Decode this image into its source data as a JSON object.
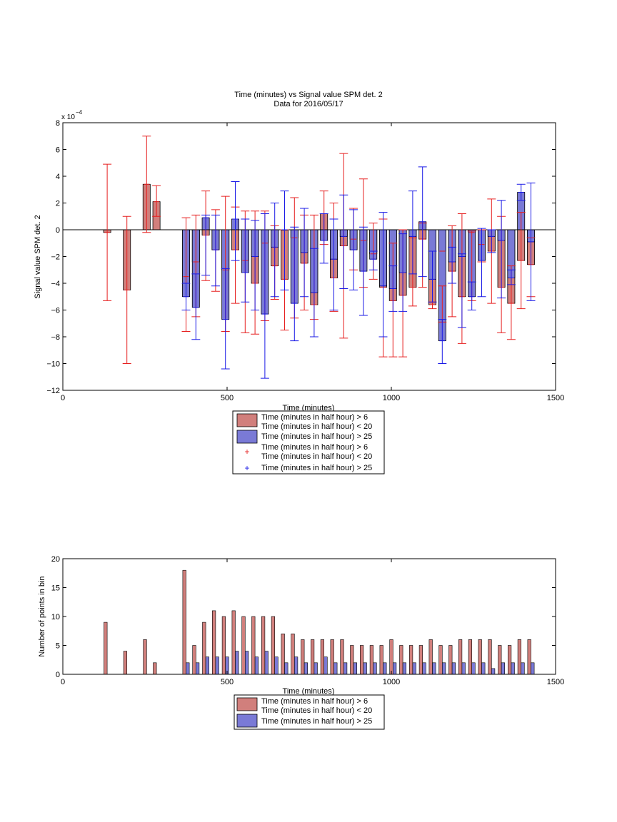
{
  "figure": {
    "title_line1": "Time (minutes) vs Signal value SPM det. 2",
    "title_line2": "Data for 2016/05/17"
  },
  "chart_data": [
    {
      "type": "bar",
      "title": "Time (minutes) vs Signal value SPM det. 2",
      "subtitle": "Data for 2016/05/17",
      "xlabel": "Time (minutes)",
      "ylabel": "Signal value SPM det. 2",
      "y_exponent_label": "x 10",
      "y_exponent_power": "−4",
      "y_multiplier": 0.0001,
      "xlim": [
        0,
        1500
      ],
      "ylim": [
        -12,
        8
      ],
      "xticks": [
        0,
        500,
        1000,
        1500
      ],
      "yticks": [
        -12,
        -10,
        -8,
        -6,
        -4,
        -2,
        0,
        2,
        4,
        6,
        8
      ],
      "ytick_labels": [
        "−12",
        "−10",
        "−8",
        "−6",
        "−4",
        "−2",
        "0",
        "2",
        "4",
        "6",
        "8"
      ],
      "grid": false,
      "legend_position": "below",
      "bar_width": 22,
      "series": [
        {
          "name": "Time (minutes in half hour) > 6\nTime (minutes in half hour) < 20",
          "color": "#d17f7c",
          "err_color": "#e61f1f",
          "x": [
            135,
            195,
            255,
            285,
            375,
            405,
            435,
            465,
            495,
            525,
            555,
            585,
            615,
            645,
            675,
            705,
            735,
            765,
            795,
            825,
            855,
            885,
            915,
            945,
            975,
            1005,
            1035,
            1065,
            1095,
            1125,
            1155,
            1185,
            1215,
            1245,
            1275,
            1305,
            1335,
            1365,
            1395,
            1425
          ],
          "values": [
            -0.2,
            -4.5,
            3.4,
            2.1,
            -3.5,
            -2.4,
            -0.4,
            -1.5,
            -3.0,
            -1.5,
            -2.3,
            -4.0,
            -1.0,
            -2.7,
            -3.7,
            -0.6,
            -2.5,
            -5.6,
            1.2,
            -3.6,
            -1.2,
            -0.7,
            -0.8,
            -1.8,
            -4.3,
            -5.3,
            -4.9,
            -4.3,
            -0.7,
            -5.6,
            -1.6,
            -3.1,
            -5.0,
            -0.2,
            -1.1,
            -1.6,
            -4.3,
            -5.5,
            -2.3,
            -2.6
          ],
          "err_low": [
            -5.3,
            -10.0,
            -0.2,
            1.0,
            -7.6,
            -6.5,
            -3.8,
            -4.6,
            -7.6,
            -5.5,
            -7.7,
            -7.8,
            -6.8,
            -5.2,
            -7.5,
            -6.6,
            -6.0,
            -6.7,
            -1.1,
            -6.1,
            -8.1,
            -3.0,
            -4.3,
            -3.7,
            -9.5,
            -9.5,
            -9.5,
            -5.7,
            -4.3,
            -5.9,
            -6.9,
            -6.5,
            -8.5,
            -5.3,
            -2.4,
            -5.5,
            -7.7,
            -8.2,
            -5.9,
            -5.0
          ],
          "err_high": [
            4.9,
            1.0,
            7.0,
            3.3,
            0.9,
            1.1,
            2.9,
            1.5,
            2.5,
            1.7,
            1.4,
            1.4,
            1.4,
            0.3,
            0.0,
            2.4,
            1.1,
            1.1,
            2.9,
            2.0,
            5.7,
            1.6,
            3.8,
            0.5,
            0.8,
            -1.0,
            0.0,
            -0.6,
            0.5,
            -5.4,
            -4.2,
            0.3,
            1.2,
            -0.1,
            0.0,
            2.3,
            1.0,
            -2.7,
            1.3,
            -0.6
          ]
        },
        {
          "name": "Time (minutes in half hour) > 25",
          "color": "#7a7ad6",
          "err_color": "#1a1ae6",
          "x": [
            375,
            405,
            435,
            465,
            495,
            525,
            555,
            585,
            615,
            645,
            675,
            705,
            735,
            765,
            795,
            825,
            855,
            885,
            915,
            945,
            975,
            1005,
            1035,
            1065,
            1095,
            1125,
            1155,
            1185,
            1215,
            1245,
            1275,
            1305,
            1335,
            1365,
            1395,
            1425
          ],
          "values": [
            -5.0,
            -5.8,
            0.9,
            -1.5,
            -6.7,
            0.8,
            -3.2,
            -2.0,
            -6.3,
            -1.3,
            0.0,
            -5.5,
            -1.7,
            -4.7,
            -0.8,
            -2.2,
            -0.5,
            -1.5,
            -3.1,
            -2.2,
            -4.2,
            -4.4,
            -3.2,
            -0.5,
            0.6,
            -3.7,
            -8.3,
            -2.4,
            -2.0,
            -5.0,
            -2.3,
            -0.5,
            -0.8,
            -3.6,
            2.8,
            -0.9
          ],
          "err_low": [
            -6.0,
            -8.2,
            -3.4,
            -4.2,
            -10.4,
            -2.3,
            -5.4,
            -6.0,
            -11.1,
            -5.0,
            -4.5,
            -8.3,
            -5.0,
            -8.0,
            -2.5,
            -6.0,
            -4.4,
            -4.5,
            -6.4,
            -3.0,
            -8.0,
            -6.1,
            -6.1,
            -3.3,
            -3.5,
            -5.4,
            -10.0,
            -4.0,
            -7.3,
            -6.0,
            -5.0,
            -1.7,
            -5.1,
            -4.1,
            2.2,
            -5.3
          ],
          "err_high": [
            -4.0,
            -3.3,
            1.1,
            1.1,
            -2.9,
            3.6,
            0.8,
            0.7,
            1.2,
            2.0,
            2.9,
            0.2,
            1.6,
            -1.4,
            1.2,
            0.8,
            2.6,
            1.5,
            0.2,
            -1.6,
            1.3,
            -2.7,
            -0.3,
            2.9,
            4.7,
            -1.6,
            -6.7,
            -1.3,
            -1.8,
            -3.9,
            0.1,
            0.0,
            2.2,
            -3.0,
            3.4,
            3.5
          ]
        }
      ]
    },
    {
      "type": "bar",
      "title": "",
      "xlabel": "Time (minutes)",
      "ylabel": "Number of points in bin",
      "xlim": [
        0,
        1500
      ],
      "ylim": [
        0,
        20
      ],
      "xticks": [
        0,
        500,
        1000,
        1500
      ],
      "yticks": [
        0,
        5,
        10,
        15,
        20
      ],
      "grid": false,
      "legend_position": "below",
      "bar_width": 10,
      "series": [
        {
          "name": "Time (minutes in half hour) > 6\nTime (minutes in half hour) < 20",
          "color": "#d17f7c",
          "x": [
            130,
            190,
            250,
            280,
            370,
            400,
            430,
            460,
            490,
            520,
            550,
            580,
            610,
            640,
            670,
            700,
            730,
            760,
            790,
            820,
            850,
            880,
            910,
            940,
            970,
            1000,
            1030,
            1060,
            1090,
            1120,
            1150,
            1180,
            1210,
            1240,
            1270,
            1300,
            1330,
            1360,
            1390,
            1420
          ],
          "values": [
            9,
            4,
            6,
            2,
            18,
            5,
            9,
            11,
            10,
            11,
            10,
            10,
            10,
            10,
            7,
            7,
            6,
            6,
            6,
            6,
            6,
            5,
            5,
            5,
            5,
            6,
            5,
            5,
            5,
            6,
            5,
            5,
            6,
            6,
            6,
            6,
            5,
            5,
            6,
            6
          ]
        },
        {
          "name": "Time (minutes in half hour) > 25",
          "color": "#7a7ad6",
          "x": [
            380,
            410,
            440,
            470,
            500,
            530,
            560,
            590,
            620,
            650,
            680,
            710,
            740,
            770,
            800,
            830,
            860,
            890,
            920,
            950,
            980,
            1010,
            1040,
            1070,
            1100,
            1130,
            1160,
            1190,
            1220,
            1250,
            1280,
            1310,
            1340,
            1370,
            1400,
            1430
          ],
          "values": [
            2,
            2,
            3,
            3,
            3,
            4,
            4,
            3,
            4,
            3,
            2,
            3,
            2,
            2,
            3,
            2,
            2,
            2,
            2,
            2,
            2,
            2,
            2,
            2,
            2,
            2,
            2,
            2,
            2,
            2,
            2,
            1,
            2,
            2,
            2,
            2
          ]
        }
      ]
    }
  ],
  "legend_top": {
    "entries": [
      {
        "label_line1": "Time (minutes in half hour) > 6",
        "label_line2": "Time (minutes in half hour) < 20",
        "kind": "bar",
        "color": "#d17f7c"
      },
      {
        "label_line1": "Time (minutes in half hour) > 25",
        "label_line2": "",
        "kind": "bar",
        "color": "#7a7ad6"
      },
      {
        "label_line1": "Time (minutes in half hour) > 6",
        "label_line2": "Time (minutes in half hour) < 20",
        "kind": "marker",
        "color": "#e61f1f"
      },
      {
        "label_line1": "Time (minutes in half hour) > 25",
        "label_line2": "",
        "kind": "marker",
        "color": "#1a1ae6"
      }
    ]
  },
  "legend_bottom": {
    "entries": [
      {
        "label_line1": "Time (minutes in half hour) > 6",
        "label_line2": "Time (minutes in half hour) < 20",
        "kind": "bar",
        "color": "#d17f7c"
      },
      {
        "label_line1": "Time (minutes in half hour) > 25",
        "label_line2": "",
        "kind": "bar",
        "color": "#7a7ad6"
      }
    ]
  }
}
